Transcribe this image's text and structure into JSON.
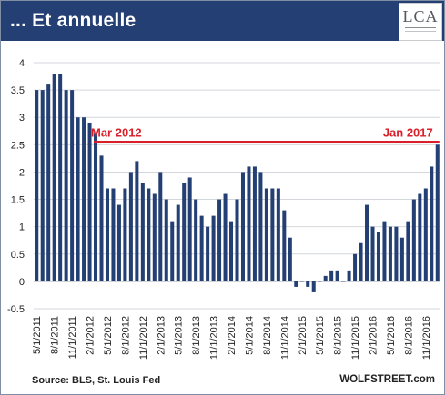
{
  "header": {
    "title": "... Et annuelle",
    "logo_text": "LCA"
  },
  "footer": {
    "source": "Source: BLS, St. Louis Fed",
    "site": "WOLFSTREET.com"
  },
  "colors": {
    "header_bg": "#243f73",
    "bar": "#243f73",
    "reference_line": "#d9202a",
    "annotation": "#d9202a"
  },
  "chart_data": {
    "type": "bar",
    "ylim": [
      -0.5,
      4
    ],
    "yticks": [
      "4",
      "3.5",
      "3",
      "2.5",
      "2",
      "1.5",
      "1",
      "0.5",
      "0",
      "-0.5"
    ],
    "ytick_values": [
      4,
      3.5,
      3,
      2.5,
      2,
      1.5,
      1,
      0.5,
      0,
      -0.5
    ],
    "grid": true,
    "xtick_labels": [
      "5/1/2011",
      "8/1/2011",
      "11/1/2011",
      "2/1/2012",
      "5/1/2012",
      "8/1/2012",
      "11/1/2012",
      "2/1/2013",
      "5/1/2013",
      "8/1/2013",
      "11/1/2013",
      "2/1/2014",
      "5/1/2014",
      "8/1/2014",
      "11/1/2014",
      "2/1/2015",
      "5/1/2015",
      "8/1/2015",
      "11/1/2015",
      "2/1/2016",
      "5/1/2016",
      "8/1/2016",
      "11/1/2016"
    ],
    "categories": [
      "5/1/2011",
      "6/1/2011",
      "7/1/2011",
      "8/1/2011",
      "9/1/2011",
      "10/1/2011",
      "11/1/2011",
      "12/1/2011",
      "1/1/2012",
      "2/1/2012",
      "3/1/2012",
      "4/1/2012",
      "5/1/2012",
      "6/1/2012",
      "7/1/2012",
      "8/1/2012",
      "9/1/2012",
      "10/1/2012",
      "11/1/2012",
      "12/1/2012",
      "1/1/2013",
      "2/1/2013",
      "3/1/2013",
      "4/1/2013",
      "5/1/2013",
      "6/1/2013",
      "7/1/2013",
      "8/1/2013",
      "9/1/2013",
      "10/1/2013",
      "11/1/2013",
      "12/1/2013",
      "1/1/2014",
      "2/1/2014",
      "3/1/2014",
      "4/1/2014",
      "5/1/2014",
      "6/1/2014",
      "7/1/2014",
      "8/1/2014",
      "9/1/2014",
      "10/1/2014",
      "11/1/2014",
      "12/1/2014",
      "1/1/2015",
      "2/1/2015",
      "3/1/2015",
      "4/1/2015",
      "5/1/2015",
      "6/1/2015",
      "7/1/2015",
      "8/1/2015",
      "9/1/2015",
      "10/1/2015",
      "11/1/2015",
      "12/1/2015",
      "1/1/2016",
      "2/1/2016",
      "3/1/2016",
      "4/1/2016",
      "5/1/2016",
      "6/1/2016",
      "7/1/2016",
      "8/1/2016",
      "9/1/2016",
      "10/1/2016",
      "11/1/2016",
      "12/1/2016",
      "1/1/2017"
    ],
    "values": [
      3.5,
      3.5,
      3.6,
      3.8,
      3.8,
      3.5,
      3.5,
      3.0,
      3.0,
      2.9,
      2.7,
      2.3,
      1.7,
      1.7,
      1.4,
      1.7,
      2.0,
      2.2,
      1.8,
      1.7,
      1.6,
      2.0,
      1.5,
      1.1,
      1.4,
      1.8,
      1.9,
      1.5,
      1.2,
      1.0,
      1.2,
      1.5,
      1.6,
      1.1,
      1.5,
      2.0,
      2.1,
      2.1,
      2.0,
      1.7,
      1.7,
      1.7,
      1.3,
      0.8,
      -0.1,
      0.0,
      -0.1,
      -0.2,
      0.0,
      0.1,
      0.2,
      0.2,
      0.0,
      0.2,
      0.5,
      0.7,
      1.4,
      1.0,
      0.9,
      1.1,
      1.0,
      1.0,
      0.8,
      1.1,
      1.5,
      1.6,
      1.7,
      2.1,
      2.5
    ],
    "reference_line": {
      "y": 2.55,
      "from": "3/1/2012",
      "to": "1/1/2017",
      "label_start": "Mar 2012",
      "label_end": "Jan 2017"
    }
  }
}
